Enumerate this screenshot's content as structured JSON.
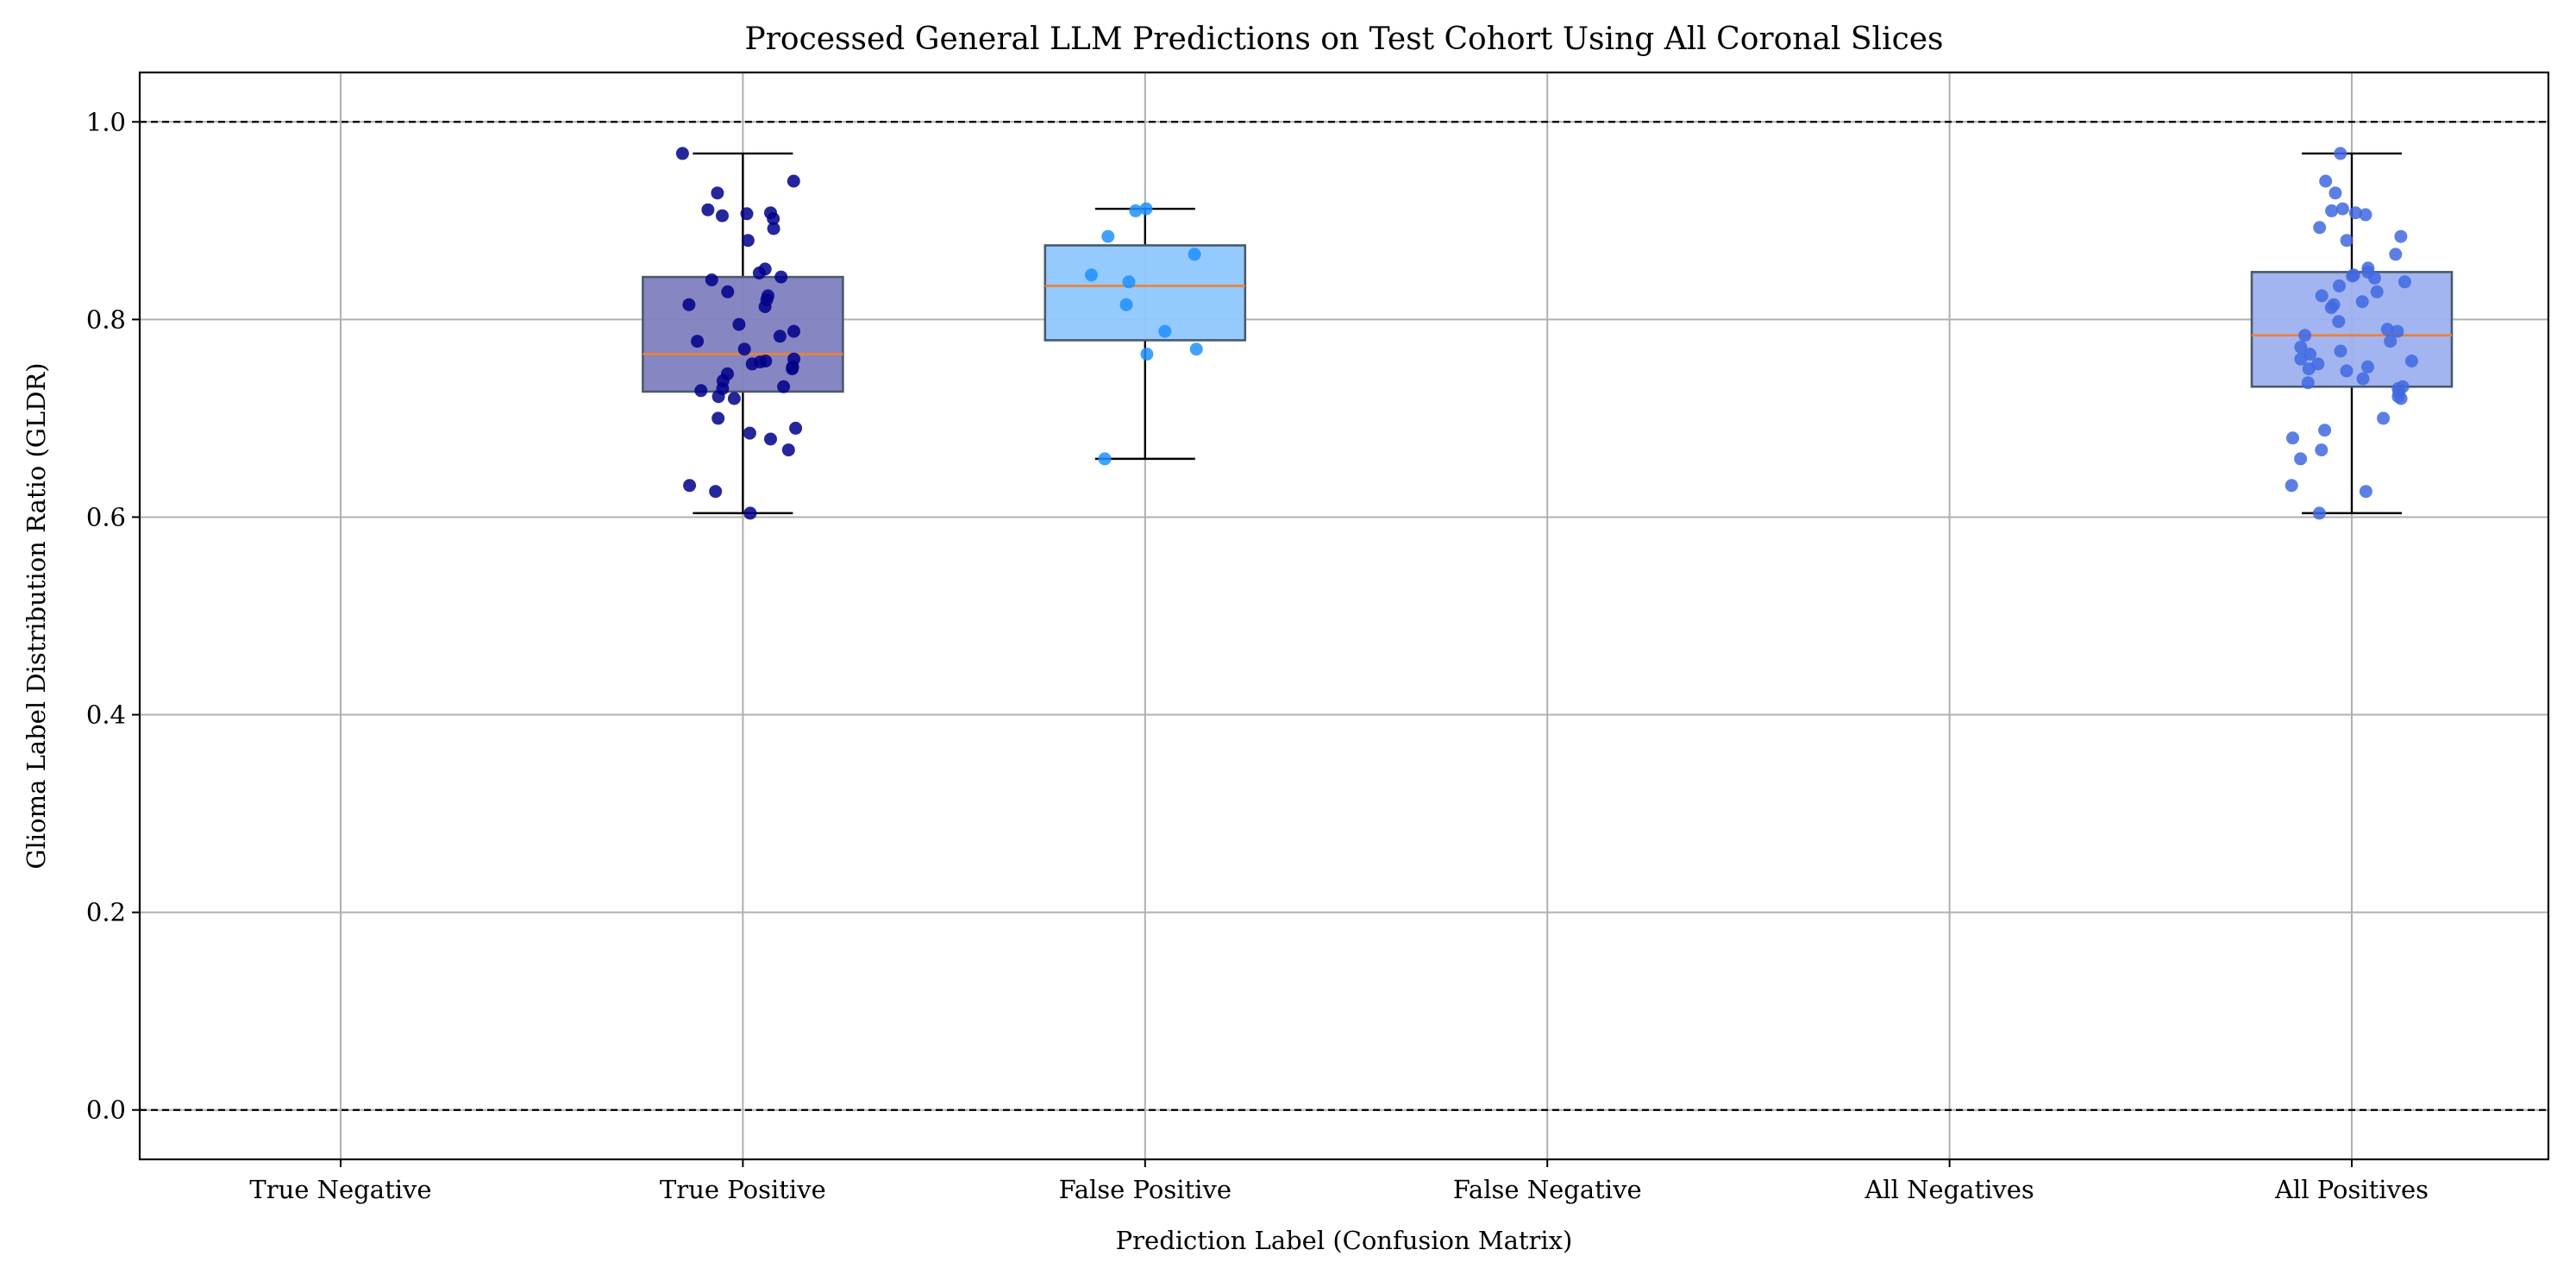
{
  "chart_data": {
    "type": "box",
    "title": "Processed General LLM Predictions on Test Cohort Using All Coronal Slices",
    "xlabel": "Prediction Label (Confusion Matrix)",
    "ylabel": "Glioma Label Distribution Ratio (GLDR)",
    "categories": [
      "True Negative",
      "True Positive",
      "False Positive",
      "False Negative",
      "All Negatives",
      "All Positives"
    ],
    "ylim": [
      -0.05,
      1.05
    ],
    "yticks": [
      0.0,
      0.2,
      0.4,
      0.6,
      0.8,
      1.0
    ],
    "ytick_labels": [
      "0.0",
      "0.2",
      "0.4",
      "0.6",
      "0.8",
      "1.0"
    ],
    "grid": true,
    "reference_lines": [
      0.0,
      1.0
    ],
    "median_color": "#f08030",
    "boxes": [
      {
        "category": "True Positive",
        "whisker_low": 0.604,
        "q1": 0.727,
        "median": 0.765,
        "q3": 0.843,
        "whisker_high": 0.968,
        "box_color": "#7f7fbf",
        "point_color": "#00008b",
        "points": [
          0.968,
          0.94,
          0.928,
          0.911,
          0.908,
          0.907,
          0.905,
          0.902,
          0.892,
          0.88,
          0.851,
          0.847,
          0.843,
          0.84,
          0.828,
          0.824,
          0.82,
          0.815,
          0.813,
          0.795,
          0.788,
          0.783,
          0.778,
          0.77,
          0.76,
          0.758,
          0.757,
          0.755,
          0.752,
          0.75,
          0.745,
          0.738,
          0.732,
          0.73,
          0.728,
          0.722,
          0.72,
          0.7,
          0.69,
          0.685,
          0.679,
          0.668,
          0.632,
          0.626,
          0.604
        ]
      },
      {
        "category": "False Positive",
        "whisker_low": 0.659,
        "q1": 0.779,
        "median": 0.834,
        "q3": 0.875,
        "whisker_high": 0.912,
        "box_color": "#8fc7ff",
        "point_color": "#1e90ff",
        "points": [
          0.912,
          0.91,
          0.884,
          0.866,
          0.845,
          0.838,
          0.815,
          0.788,
          0.77,
          0.765,
          0.659
        ]
      },
      {
        "category": "All Positives",
        "whisker_low": 0.604,
        "q1": 0.732,
        "median": 0.784,
        "q3": 0.848,
        "whisker_high": 0.968,
        "box_color": "#9db1ef",
        "point_color": "#4169e1",
        "points": [
          0.968,
          0.94,
          0.928,
          0.912,
          0.91,
          0.908,
          0.906,
          0.893,
          0.884,
          0.88,
          0.866,
          0.852,
          0.848,
          0.845,
          0.844,
          0.842,
          0.838,
          0.834,
          0.828,
          0.824,
          0.818,
          0.815,
          0.812,
          0.798,
          0.79,
          0.788,
          0.784,
          0.778,
          0.772,
          0.768,
          0.765,
          0.76,
          0.758,
          0.755,
          0.752,
          0.75,
          0.748,
          0.74,
          0.736,
          0.732,
          0.73,
          0.726,
          0.722,
          0.72,
          0.7,
          0.688,
          0.68,
          0.668,
          0.659,
          0.632,
          0.626,
          0.604
        ]
      }
    ]
  }
}
